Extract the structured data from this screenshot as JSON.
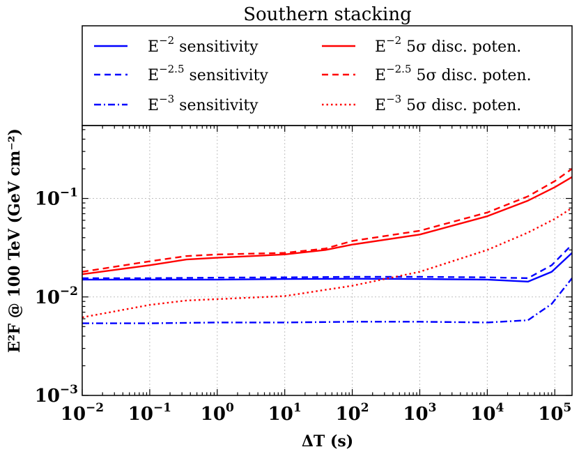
{
  "chart_data": {
    "type": "line",
    "title": "Southern stacking",
    "xlabel": "ΔT (s)",
    "ylabel": "E²F @ 100 TeV (GeV cm⁻²)",
    "x_scale": "log",
    "y_scale": "log",
    "xlim": [
      0.01,
      180000
    ],
    "ylim": [
      0.001,
      0.55
    ],
    "grid": true,
    "legend_position": "top",
    "x_ticks": [
      {
        "value": 0.01,
        "base": "10",
        "exp": "−2"
      },
      {
        "value": 0.1,
        "base": "10",
        "exp": "−1"
      },
      {
        "value": 1,
        "base": "10",
        "exp": "0"
      },
      {
        "value": 10,
        "base": "10",
        "exp": "1"
      },
      {
        "value": 100,
        "base": "10",
        "exp": "2"
      },
      {
        "value": 1000,
        "base": "10",
        "exp": "3"
      },
      {
        "value": 10000,
        "base": "10",
        "exp": "4"
      },
      {
        "value": 100000,
        "base": "10",
        "exp": "5"
      }
    ],
    "y_ticks": [
      {
        "value": 0.001,
        "base": "10",
        "exp": "−3"
      },
      {
        "value": 0.01,
        "base": "10",
        "exp": "−2"
      },
      {
        "value": 0.1,
        "base": "10",
        "exp": "−1"
      }
    ],
    "series": [
      {
        "name": "E⁻² sensitivity",
        "legend_main": "E",
        "legend_sup": "−2",
        "legend_rest": " sensitivity",
        "color": "#0000ff",
        "linestyle": "solid",
        "x": [
          0.01,
          0.1,
          1,
          10,
          100,
          1000,
          10000,
          40000,
          90000,
          180000
        ],
        "y": [
          0.015,
          0.015,
          0.015,
          0.0152,
          0.0153,
          0.0152,
          0.015,
          0.0143,
          0.018,
          0.028
        ]
      },
      {
        "name": "E⁻²·⁵ sensitivity",
        "legend_main": "E",
        "legend_sup": "−2.5",
        "legend_rest": " sensitivity",
        "color": "#0000ff",
        "linestyle": "dashed",
        "x": [
          0.01,
          0.1,
          1,
          10,
          100,
          1000,
          10000,
          40000,
          90000,
          180000
        ],
        "y": [
          0.0155,
          0.0155,
          0.0157,
          0.0158,
          0.016,
          0.016,
          0.0158,
          0.0155,
          0.021,
          0.034
        ]
      },
      {
        "name": "E⁻³ sensitivity",
        "legend_main": "E",
        "legend_sup": "−3",
        "legend_rest": " sensitivity",
        "color": "#0000ff",
        "linestyle": "dashdot",
        "x": [
          0.01,
          0.1,
          1,
          10,
          100,
          1000,
          10000,
          40000,
          90000,
          180000
        ],
        "y": [
          0.0054,
          0.0054,
          0.0055,
          0.0055,
          0.0056,
          0.0056,
          0.0055,
          0.0058,
          0.0085,
          0.0155
        ]
      },
      {
        "name": "E⁻² 5σ disc. poten.",
        "legend_main": "E",
        "legend_sup": "−2",
        "legend_rest": " 5σ disc. poten.",
        "color": "#ff0000",
        "linestyle": "solid",
        "x": [
          0.01,
          0.1,
          0.35,
          1,
          10,
          40,
          100,
          1000,
          10000,
          40000,
          100000,
          180000
        ],
        "y": [
          0.017,
          0.021,
          0.024,
          0.025,
          0.027,
          0.03,
          0.034,
          0.043,
          0.066,
          0.095,
          0.13,
          0.165
        ]
      },
      {
        "name": "E⁻²·⁵ 5σ disc. poten.",
        "legend_main": "E",
        "legend_sup": "−2.5",
        "legend_rest": " 5σ disc. poten.",
        "color": "#ff0000",
        "linestyle": "dashed",
        "x": [
          0.01,
          0.1,
          0.35,
          1,
          10,
          40,
          100,
          1000,
          10000,
          40000,
          100000,
          180000
        ],
        "y": [
          0.018,
          0.023,
          0.026,
          0.027,
          0.028,
          0.031,
          0.037,
          0.047,
          0.072,
          0.105,
          0.15,
          0.2
        ]
      },
      {
        "name": "E⁻³ 5σ disc. poten.",
        "legend_main": "E",
        "legend_sup": "−3",
        "legend_rest": " 5σ disc. poten.",
        "color": "#ff0000",
        "linestyle": "dotted",
        "x": [
          0.01,
          0.1,
          0.35,
          1,
          10,
          100,
          1000,
          10000,
          40000,
          100000,
          180000
        ],
        "y": [
          0.0062,
          0.0083,
          0.0092,
          0.0095,
          0.0102,
          0.013,
          0.018,
          0.03,
          0.045,
          0.062,
          0.08
        ]
      }
    ]
  }
}
